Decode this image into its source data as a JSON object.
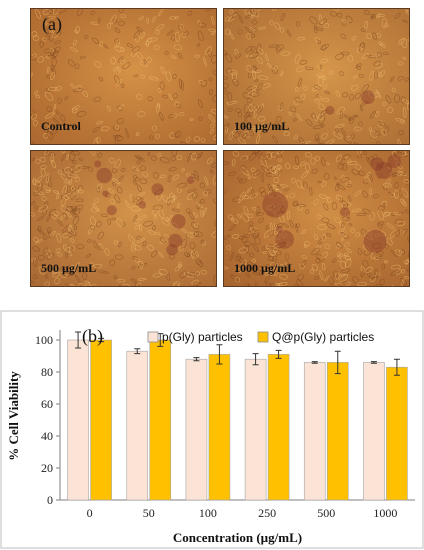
{
  "panel_a": {
    "label": "(a)",
    "images": [
      {
        "label": "Control",
        "tone": "#c9813c"
      },
      {
        "label": "100 µg/mL",
        "tone": "#c98a45"
      },
      {
        "label": "500 µg/mL",
        "tone": "#c58444"
      },
      {
        "label": "1000 µg/mL",
        "tone": "#c07a3a"
      }
    ]
  },
  "chart_data": {
    "type": "bar",
    "panel_label": "(b)",
    "categories": [
      "0",
      "50",
      "100",
      "250",
      "500",
      "1000"
    ],
    "series": [
      {
        "name": "p(Gly) particles",
        "values": [
          100,
          93,
          88,
          88,
          86,
          86
        ],
        "errors": [
          5,
          1.5,
          1,
          3.5,
          0.5,
          0.5
        ],
        "color": "#fbe4d6"
      },
      {
        "name": "Q@p(Gly) particles",
        "values": [
          100,
          100,
          91,
          91,
          86,
          83
        ],
        "errors": [
          1,
          4,
          6,
          2.5,
          7,
          5
        ],
        "color": "#ffc000"
      }
    ],
    "xlabel": "Concentration  (µg/mL)",
    "ylabel": "% Cell Viability",
    "yticks": [
      "0",
      "10",
      "20",
      "30",
      "40",
      "50",
      "60",
      "70",
      "80",
      "90",
      "100"
    ],
    "ylim": [
      0,
      105
    ],
    "grid": false,
    "legend_position": "top"
  }
}
